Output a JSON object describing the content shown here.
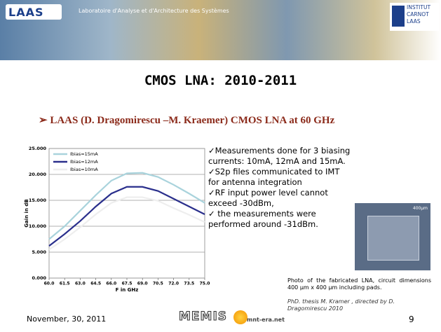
{
  "header": {
    "logo_left": "LAAS",
    "lab_name": "Laboratoire d'Analyse et d'Architecture des Systèmes",
    "logo_right": [
      "INSTITUT",
      "CARNOT",
      "LAAS"
    ]
  },
  "title": "CMOS LNA: 2010-2011",
  "subtitle": "LAAS (D. Dragomirescu –M. Kraemer) CMOS LNA at 60 GHz",
  "chart_data": {
    "type": "line",
    "x_label": "F in GHz",
    "y_label": "Gain in dB",
    "x": [
      60.0,
      61.5,
      63.0,
      64.5,
      66.0,
      67.5,
      69.0,
      70.5,
      72.0,
      73.5,
      75.0
    ],
    "xlim": [
      60.0,
      75.0
    ],
    "xticks": [
      {
        "value": 60.0,
        "label": "60.0"
      },
      {
        "value": 61.5,
        "label": "61.5"
      },
      {
        "value": 63.0,
        "label": "63.0"
      },
      {
        "value": 64.5,
        "label": "64.5"
      },
      {
        "value": 66.0,
        "label": "66.0"
      },
      {
        "value": 67.5,
        "label": "67.5"
      },
      {
        "value": 69.0,
        "label": "69.0"
      },
      {
        "value": 70.5,
        "label": "70.5"
      },
      {
        "value": 72.0,
        "label": "72.0"
      },
      {
        "value": 73.5,
        "label": "73.5"
      },
      {
        "value": 75.0,
        "label": "75.0"
      }
    ],
    "ylim": [
      0,
      25
    ],
    "yticks": [
      {
        "value": 0,
        "label": "0.000"
      },
      {
        "value": 5,
        "label": "5.000"
      },
      {
        "value": 10,
        "label": "10.000"
      },
      {
        "value": 15,
        "label": "15.000"
      },
      {
        "value": 20,
        "label": "20.000"
      },
      {
        "value": 25,
        "label": "25.000"
      }
    ],
    "grid": true,
    "series": [
      {
        "name": "Ibias=15mA",
        "color": "#a9d3dc",
        "values": [
          7.5,
          10,
          13,
          16,
          18.8,
          20.2,
          20.3,
          19.5,
          18,
          16.3,
          14.5
        ]
      },
      {
        "name": "Ibias=12mA",
        "color": "#2a2f8c",
        "values": [
          6.2,
          8.5,
          11,
          13.8,
          16.3,
          17.6,
          17.6,
          16.8,
          15.3,
          13.8,
          12.3
        ]
      },
      {
        "name": "Ibias=10mA",
        "color": "#eeeeee",
        "values": [
          5.5,
          7.5,
          9.8,
          12.3,
          14.5,
          15.6,
          15.6,
          14.9,
          13.5,
          12.2,
          10.8
        ]
      }
    ]
  },
  "bullets": [
    "✓Measurements done for 3 biasing currents: 10mA, 12mA and 15mA.",
    "✓S2p files communicated to IMT for antenna integration",
    "✓RF input power level cannot exceed -30dBm,",
    "✓ the measurements were performed around -31dBm."
  ],
  "photo_label": "400µm",
  "caption": "Photo of the fabricated LNA, circuit dimensions 400 µm x 400 µm including pads.",
  "thesis": "PhD. thesis M. Kramer , directed by D. Dragomirescu 2010",
  "footer": {
    "date": "November, 30, 2011",
    "logo": "MEMIS",
    "site": "mnt-era.net",
    "page": "9"
  }
}
